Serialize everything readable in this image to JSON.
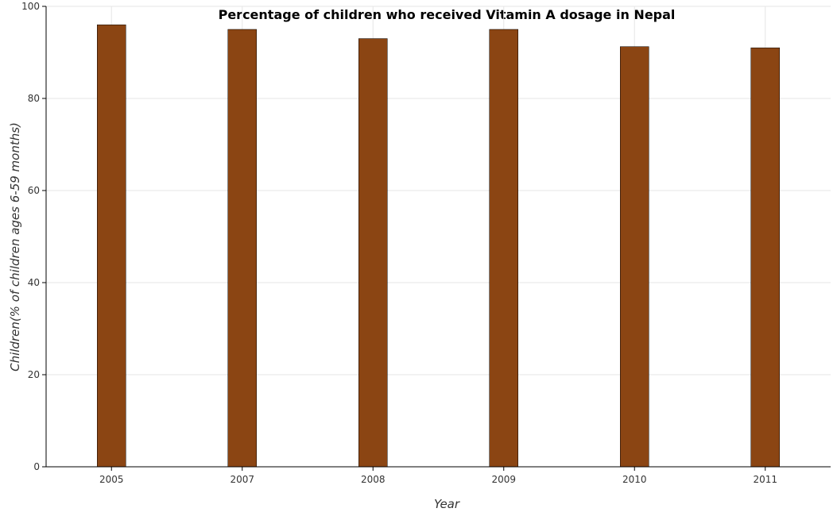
{
  "chart_data": {
    "type": "bar",
    "title": "Percentage of children who received Vitamin A dosage in Nepal",
    "xlabel": "Year",
    "ylabel": "Children(% of children ages 6-59 months)",
    "categories": [
      "2005",
      "2007",
      "2008",
      "2009",
      "2010",
      "2011"
    ],
    "values": [
      96,
      95,
      93,
      95,
      91.25,
      91
    ],
    "ylim": [
      0,
      100
    ],
    "yticks": [
      0,
      20,
      40,
      60,
      80,
      100
    ],
    "grid": true,
    "colors": {
      "bar": "#8b4513"
    }
  }
}
